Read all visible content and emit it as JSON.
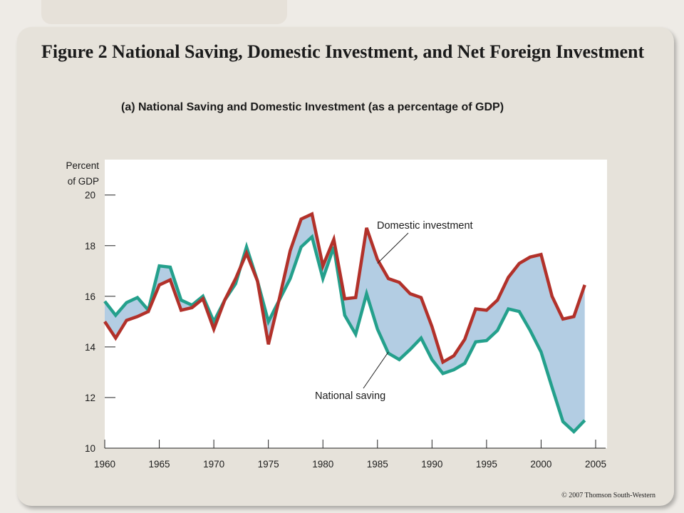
{
  "header": {
    "title": "Figure 2 National Saving, Domestic Investment, and Net Foreign Investment",
    "subtitle": "(a) National Saving and Domestic Investment (as a percentage of GDP)"
  },
  "footer": {
    "copyright": "© 2007 Thomson South-Western"
  },
  "colors": {
    "background": "#eeebe6",
    "card": "#e6e2da",
    "plot_background": "#ffffff",
    "fill_between": "#b3cde3",
    "domestic_investment": "#b2312a",
    "national_saving": "#24a08c"
  },
  "chart_data": {
    "type": "line",
    "title": "(a) National Saving and Domestic Investment (as a percentage of GDP)",
    "ylabel_line1": "Percent",
    "ylabel_line2": "of GDP",
    "xlabel": "",
    "xlim": [
      1960,
      2005
    ],
    "ylim": [
      10,
      21.4
    ],
    "xticks": [
      1960,
      1965,
      1970,
      1975,
      1980,
      1985,
      1990,
      1995,
      2000,
      2005
    ],
    "xtick_labels": [
      "1960",
      "1965",
      "1970",
      "1975",
      "1980",
      "1985",
      "1990",
      "1995",
      "2000",
      "2005"
    ],
    "yticks": [
      10,
      12,
      14,
      16,
      18,
      20
    ],
    "ytick_labels": [
      "10",
      "12",
      "14",
      "16",
      "18",
      "20"
    ],
    "grid": false,
    "fill_between_series": true,
    "x": [
      1960,
      1961,
      1962,
      1963,
      1964,
      1965,
      1966,
      1967,
      1968,
      1969,
      1970,
      1971,
      1972,
      1973,
      1974,
      1975,
      1976,
      1977,
      1978,
      1979,
      1980,
      1981,
      1982,
      1983,
      1984,
      1985,
      1986,
      1987,
      1988,
      1989,
      1990,
      1991,
      1992,
      1993,
      1994,
      1995,
      1996,
      1997,
      1998,
      1999,
      2000,
      2001,
      2002,
      2003,
      2004
    ],
    "series": [
      {
        "name": "Domestic investment",
        "color": "#b2312a",
        "values": [
          15.0,
          14.35,
          15.05,
          15.2,
          15.4,
          16.45,
          16.65,
          15.45,
          15.55,
          15.9,
          14.7,
          15.85,
          16.7,
          17.7,
          16.6,
          14.1,
          15.9,
          17.8,
          19.05,
          19.25,
          17.2,
          18.25,
          15.9,
          15.95,
          18.7,
          17.45,
          16.7,
          16.55,
          16.1,
          15.95,
          14.8,
          13.4,
          13.65,
          14.3,
          15.5,
          15.45,
          15.85,
          16.75,
          17.3,
          17.55,
          17.65,
          16.0,
          15.1,
          15.2,
          16.45
        ]
      },
      {
        "name": "National saving",
        "color": "#24a08c",
        "values": [
          15.8,
          15.25,
          15.75,
          15.95,
          15.45,
          17.2,
          17.15,
          15.85,
          15.65,
          16.0,
          15.0,
          15.85,
          16.5,
          17.95,
          16.6,
          15.0,
          15.85,
          16.7,
          17.95,
          18.35,
          16.7,
          17.95,
          15.25,
          14.5,
          16.1,
          14.7,
          13.75,
          13.5,
          13.9,
          14.35,
          13.5,
          12.95,
          13.1,
          13.35,
          14.2,
          14.25,
          14.65,
          15.5,
          15.4,
          14.65,
          13.8,
          12.4,
          11.05,
          10.65,
          11.1
        ]
      }
    ],
    "annotations": [
      {
        "text": "Domestic investment",
        "series": "Domestic investment",
        "point_x": 1985,
        "point_y": 17.3
      },
      {
        "text": "National saving",
        "series": "National saving",
        "point_x": 1986,
        "point_y": 13.8
      }
    ]
  }
}
